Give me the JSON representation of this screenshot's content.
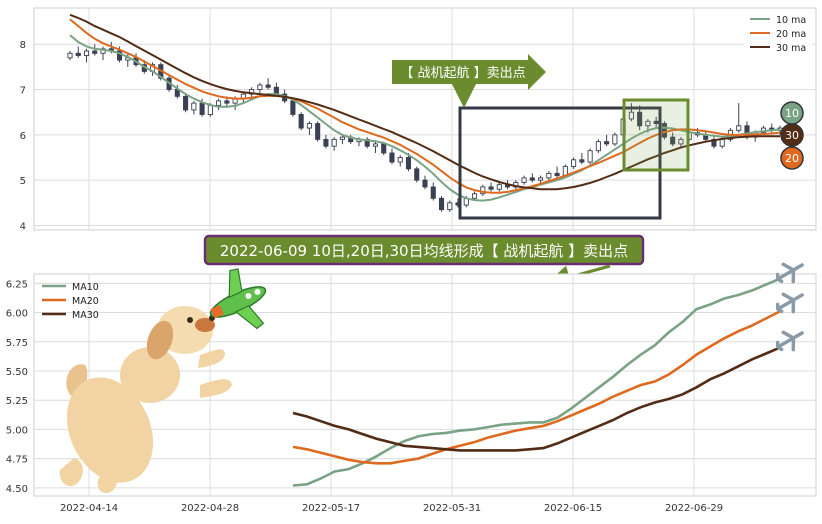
{
  "colors": {
    "ma10": "#7aa386",
    "ma20": "#de6a1f",
    "ma30": "#522c14",
    "frame": "#333844",
    "callout_green": "#6a8c2e",
    "callout_purple": "#6b2d72",
    "grid": "#dcdcdc"
  },
  "top_panel": {
    "legend": [
      "10 ma",
      "20 ma",
      "30 ma"
    ],
    "callout": "【 战机起航 】卖出点",
    "badges": [
      "10",
      "30",
      "20"
    ]
  },
  "banner": "2022-06-09 10日,20日,30日均线形成【 战机起航 】卖出点",
  "icons": [
    "dog-illustration",
    "toy-plane-icon",
    "plane-emoji-icon",
    "plane-emoji-icon",
    "plane-emoji-icon"
  ],
  "chart_data": [
    {
      "type": "candlestick",
      "x_tick_labels": [
        "2022-04-14",
        "2022-04-28",
        "2022-05-17",
        "2022-05-31",
        "2022-06-15",
        "2022-06-29"
      ],
      "ylim": [
        3.9,
        8.8
      ],
      "yticks": [
        "4",
        "5",
        "6",
        "7",
        "8"
      ],
      "grid": true,
      "legend_position": "top-right",
      "candles_ohlc": [
        [
          7.7,
          7.85,
          7.65,
          7.8
        ],
        [
          7.8,
          7.95,
          7.7,
          7.75
        ],
        [
          7.75,
          7.9,
          7.6,
          7.85
        ],
        [
          7.85,
          8.0,
          7.75,
          7.8
        ],
        [
          7.8,
          7.95,
          7.65,
          7.9
        ],
        [
          7.9,
          8.05,
          7.8,
          7.85
        ],
        [
          7.85,
          7.95,
          7.6,
          7.65
        ],
        [
          7.65,
          7.8,
          7.5,
          7.7
        ],
        [
          7.7,
          7.8,
          7.5,
          7.55
        ],
        [
          7.55,
          7.65,
          7.35,
          7.4
        ],
        [
          7.4,
          7.6,
          7.3,
          7.55
        ],
        [
          7.55,
          7.6,
          7.2,
          7.25
        ],
        [
          7.25,
          7.3,
          6.95,
          7.0
        ],
        [
          7.0,
          7.1,
          6.8,
          6.85
        ],
        [
          6.85,
          6.9,
          6.5,
          6.55
        ],
        [
          6.55,
          6.75,
          6.45,
          6.7
        ],
        [
          6.7,
          6.8,
          6.4,
          6.45
        ],
        [
          6.45,
          6.7,
          6.4,
          6.65
        ],
        [
          6.65,
          6.8,
          6.55,
          6.75
        ],
        [
          6.75,
          6.85,
          6.6,
          6.7
        ],
        [
          6.7,
          6.85,
          6.55,
          6.8
        ],
        [
          6.8,
          6.95,
          6.7,
          6.9
        ],
        [
          6.9,
          7.05,
          6.8,
          7.0
        ],
        [
          7.0,
          7.15,
          6.9,
          7.1
        ],
        [
          7.1,
          7.25,
          7.0,
          7.05
        ],
        [
          7.05,
          7.15,
          6.85,
          6.9
        ],
        [
          6.9,
          7.0,
          6.7,
          6.75
        ],
        [
          6.75,
          6.8,
          6.4,
          6.45
        ],
        [
          6.45,
          6.5,
          6.1,
          6.15
        ],
        [
          6.15,
          6.3,
          6.0,
          6.25
        ],
        [
          6.25,
          6.3,
          5.85,
          5.9
        ],
        [
          5.9,
          6.0,
          5.7,
          5.75
        ],
        [
          5.75,
          5.95,
          5.65,
          5.9
        ],
        [
          5.9,
          6.0,
          5.8,
          5.95
        ],
        [
          5.95,
          6.0,
          5.8,
          5.85
        ],
        [
          5.85,
          5.95,
          5.75,
          5.9
        ],
        [
          5.9,
          5.95,
          5.7,
          5.75
        ],
        [
          5.75,
          5.85,
          5.6,
          5.8
        ],
        [
          5.8,
          5.85,
          5.55,
          5.6
        ],
        [
          5.6,
          5.7,
          5.35,
          5.4
        ],
        [
          5.4,
          5.55,
          5.3,
          5.5
        ],
        [
          5.5,
          5.6,
          5.2,
          5.25
        ],
        [
          5.25,
          5.3,
          4.95,
          5.0
        ],
        [
          5.0,
          5.1,
          4.8,
          4.85
        ],
        [
          4.85,
          4.95,
          4.55,
          4.6
        ],
        [
          4.6,
          4.65,
          4.3,
          4.35
        ],
        [
          4.35,
          4.55,
          4.3,
          4.5
        ],
        [
          4.5,
          4.6,
          4.4,
          4.45
        ],
        [
          4.45,
          4.65,
          4.4,
          4.6
        ],
        [
          4.6,
          4.75,
          4.55,
          4.7
        ],
        [
          4.7,
          4.9,
          4.65,
          4.85
        ],
        [
          4.85,
          4.95,
          4.75,
          4.8
        ],
        [
          4.8,
          4.95,
          4.75,
          4.9
        ],
        [
          4.9,
          5.0,
          4.8,
          4.85
        ],
        [
          4.85,
          5.0,
          4.8,
          4.95
        ],
        [
          4.95,
          5.1,
          4.9,
          5.05
        ],
        [
          5.05,
          5.15,
          4.95,
          5.0
        ],
        [
          5.0,
          5.1,
          4.9,
          5.05
        ],
        [
          5.05,
          5.2,
          5.0,
          5.15
        ],
        [
          5.15,
          5.3,
          5.05,
          5.1
        ],
        [
          5.1,
          5.35,
          5.05,
          5.3
        ],
        [
          5.3,
          5.5,
          5.25,
          5.45
        ],
        [
          5.45,
          5.6,
          5.35,
          5.4
        ],
        [
          5.4,
          5.7,
          5.35,
          5.65
        ],
        [
          5.65,
          5.9,
          5.6,
          5.85
        ],
        [
          5.85,
          6.0,
          5.75,
          5.8
        ],
        [
          5.8,
          6.05,
          5.75,
          6.0
        ],
        [
          6.0,
          6.4,
          5.95,
          6.35
        ],
        [
          6.35,
          6.7,
          6.3,
          6.5
        ],
        [
          6.5,
          6.65,
          6.1,
          6.2
        ],
        [
          6.2,
          6.35,
          6.05,
          6.3
        ],
        [
          6.3,
          6.4,
          6.15,
          6.25
        ],
        [
          6.25,
          6.3,
          5.9,
          5.95
        ],
        [
          5.95,
          6.05,
          5.75,
          5.8
        ],
        [
          5.8,
          5.95,
          5.7,
          5.9
        ],
        [
          5.9,
          6.1,
          5.85,
          6.05
        ],
        [
          6.05,
          6.15,
          5.95,
          6.0
        ],
        [
          6.0,
          6.1,
          5.85,
          5.9
        ],
        [
          5.9,
          6.0,
          5.7,
          5.75
        ],
        [
          5.75,
          5.95,
          5.7,
          5.9
        ],
        [
          5.9,
          6.15,
          5.85,
          6.1
        ],
        [
          6.1,
          6.7,
          6.05,
          6.2
        ],
        [
          6.2,
          6.3,
          5.9,
          5.95
        ],
        [
          5.95,
          6.1,
          5.85,
          6.05
        ],
        [
          6.05,
          6.2,
          6.0,
          6.15
        ],
        [
          6.15,
          6.25,
          6.05,
          6.1
        ],
        [
          6.1,
          6.2,
          6.0,
          6.15
        ]
      ],
      "series": [
        {
          "name": "10 ma",
          "values": [
            8.2,
            8.05,
            7.95,
            7.9,
            7.88,
            7.85,
            7.8,
            7.72,
            7.62,
            7.5,
            7.4,
            7.28,
            7.15,
            7.02,
            6.9,
            6.8,
            6.72,
            6.66,
            6.62,
            6.62,
            6.64,
            6.7,
            6.78,
            6.86,
            6.9,
            6.9,
            6.86,
            6.78,
            6.66,
            6.52,
            6.38,
            6.24,
            6.1,
            6.0,
            5.94,
            5.9,
            5.88,
            5.86,
            5.82,
            5.75,
            5.66,
            5.56,
            5.44,
            5.3,
            5.14,
            4.96,
            4.8,
            4.68,
            4.6,
            4.56,
            4.55,
            4.57,
            4.62,
            4.68,
            4.74,
            4.8,
            4.85,
            4.9,
            4.95,
            5.0,
            5.06,
            5.14,
            5.22,
            5.32,
            5.44,
            5.56,
            5.68,
            5.8,
            5.92,
            6.02,
            6.1,
            6.15,
            6.16,
            6.14,
            6.1,
            6.06,
            6.03,
            6.0,
            5.98,
            5.96,
            5.97,
            6.0,
            6.03,
            6.06,
            6.08,
            6.1,
            6.12
          ]
        },
        {
          "name": "20 ma",
          "values": [
            8.55,
            8.4,
            8.25,
            8.12,
            8.02,
            7.95,
            7.88,
            7.8,
            7.72,
            7.62,
            7.52,
            7.42,
            7.32,
            7.22,
            7.12,
            7.04,
            6.96,
            6.9,
            6.85,
            6.82,
            6.8,
            6.8,
            6.82,
            6.85,
            6.86,
            6.86,
            6.84,
            6.8,
            6.74,
            6.66,
            6.58,
            6.48,
            6.38,
            6.28,
            6.2,
            6.12,
            6.06,
            6.0,
            5.94,
            5.86,
            5.78,
            5.68,
            5.58,
            5.46,
            5.34,
            5.2,
            5.06,
            4.94,
            4.84,
            4.78,
            4.74,
            4.72,
            4.72,
            4.74,
            4.78,
            4.82,
            4.87,
            4.92,
            4.98,
            5.04,
            5.1,
            5.17,
            5.24,
            5.31,
            5.38,
            5.46,
            5.54,
            5.62,
            5.72,
            5.82,
            5.92,
            6.0,
            6.06,
            6.1,
            6.12,
            6.12,
            6.1,
            6.08,
            6.05,
            6.02,
            6.0,
            6.0,
            6.0,
            6.01,
            6.02,
            6.03,
            6.05
          ]
        },
        {
          "name": "30 ma",
          "values": [
            8.65,
            8.58,
            8.5,
            8.4,
            8.32,
            8.24,
            8.16,
            8.06,
            7.96,
            7.86,
            7.76,
            7.66,
            7.56,
            7.46,
            7.36,
            7.27,
            7.19,
            7.12,
            7.06,
            7.01,
            6.97,
            6.94,
            6.92,
            6.9,
            6.88,
            6.86,
            6.84,
            6.81,
            6.77,
            6.72,
            6.67,
            6.61,
            6.55,
            6.48,
            6.41,
            6.34,
            6.27,
            6.2,
            6.13,
            6.06,
            5.98,
            5.9,
            5.82,
            5.73,
            5.64,
            5.54,
            5.44,
            5.34,
            5.25,
            5.16,
            5.08,
            5.02,
            4.96,
            4.91,
            4.87,
            4.84,
            4.82,
            4.8,
            4.8,
            4.8,
            4.82,
            4.85,
            4.89,
            4.94,
            5.0,
            5.07,
            5.14,
            5.22,
            5.3,
            5.38,
            5.46,
            5.53,
            5.6,
            5.66,
            5.72,
            5.77,
            5.81,
            5.85,
            5.88,
            5.91,
            5.93,
            5.95,
            5.96,
            5.97,
            5.97,
            5.97,
            5.97
          ]
        }
      ]
    },
    {
      "type": "line",
      "x_tick_labels": [
        "2022-04-14",
        "2022-04-28",
        "2022-05-17",
        "2022-05-31",
        "2022-06-15",
        "2022-06-29"
      ],
      "ylim": [
        4.43,
        6.33
      ],
      "yticks": [
        "4.50",
        "4.75",
        "5.00",
        "5.25",
        "5.50",
        "5.75",
        "6.00",
        "6.25"
      ],
      "grid": true,
      "legend_position": "top-left",
      "series": [
        {
          "name": "MA10",
          "values": [
            4.52,
            4.53,
            4.58,
            4.64,
            4.66,
            4.71,
            4.77,
            4.84,
            4.9,
            4.94,
            4.96,
            4.97,
            4.99,
            5.0,
            5.02,
            5.04,
            5.05,
            5.06,
            5.06,
            5.1,
            5.18,
            5.27,
            5.36,
            5.45,
            5.55,
            5.64,
            5.72,
            5.83,
            5.92,
            6.03,
            6.07,
            6.12,
            6.15,
            6.19,
            6.24,
            6.29
          ]
        },
        {
          "name": "MA20",
          "values": [
            4.85,
            4.83,
            4.8,
            4.77,
            4.74,
            4.72,
            4.71,
            4.71,
            4.73,
            4.75,
            4.79,
            4.83,
            4.86,
            4.89,
            4.93,
            4.96,
            4.99,
            5.01,
            5.03,
            5.07,
            5.12,
            5.17,
            5.22,
            5.28,
            5.33,
            5.38,
            5.41,
            5.47,
            5.55,
            5.64,
            5.71,
            5.78,
            5.84,
            5.89,
            5.95,
            6.01
          ]
        },
        {
          "name": "MA30",
          "values": [
            5.14,
            5.11,
            5.07,
            5.03,
            5.0,
            4.96,
            4.92,
            4.89,
            4.86,
            4.85,
            4.84,
            4.83,
            4.82,
            4.82,
            4.82,
            4.82,
            4.82,
            4.83,
            4.84,
            4.88,
            4.93,
            4.98,
            5.03,
            5.08,
            5.14,
            5.19,
            5.23,
            5.26,
            5.3,
            5.36,
            5.43,
            5.48,
            5.54,
            5.6,
            5.65,
            5.7
          ]
        }
      ]
    }
  ]
}
